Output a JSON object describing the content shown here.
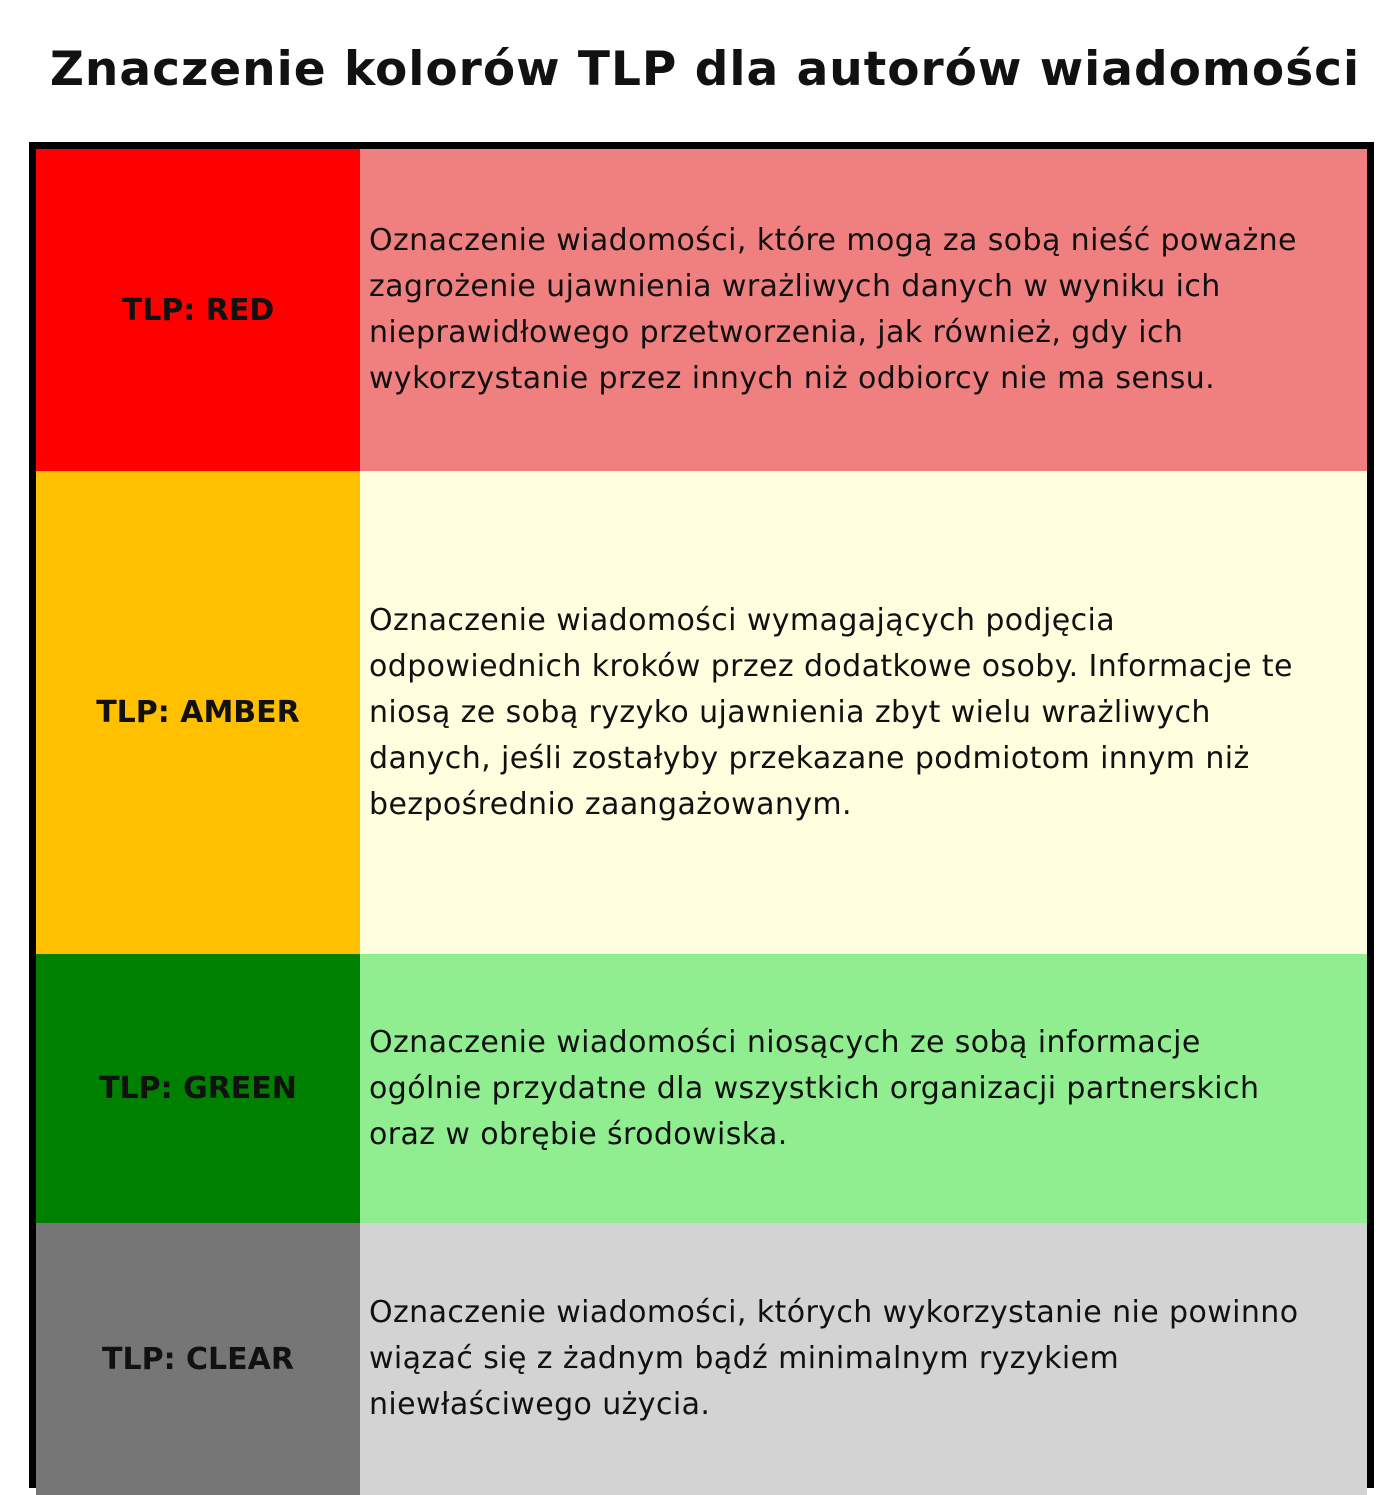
{
  "title": "Znaczenie kolorów TLP dla autorów wiadomości",
  "rows": [
    {
      "label": "TLP: RED",
      "label_color": "#ff0000",
      "desc_color": "#f08080",
      "lines": [
        "Oznaczenie wiadomości, które mogą za sobą nieść poważne",
        "zagrożenie ujawnienia wrażliwych danych w wyniku ich",
        "nieprawidłowego przetworzenia, jak również, gdy ich",
        "wykorzystanie przez innych niż odbiorcy nie ma sensu."
      ]
    },
    {
      "label": "TLP: AMBER",
      "label_color": "#ffc000",
      "desc_color": "#ffffe0",
      "lines": [
        "Oznaczenie wiadomości wymagających podjęcia",
        "odpowiednich kroków przez dodatkowe osoby. Informacje te",
        "niosą ze sobą ryzyko ujawnienia zbyt wielu wrażliwych",
        "danych, jeśli zostałyby przekazane podmiotom innym niż",
        "bezpośrednio zaangażowanym."
      ]
    },
    {
      "label": "TLP: GREEN",
      "label_color": "#008000",
      "desc_color": "#90ee90",
      "lines": [
        "Oznaczenie wiadomości niosących ze sobą informacje",
        "ogólnie przydatne dla wszystkich organizacji partnerskich",
        "oraz w obrębie środowiska."
      ]
    },
    {
      "label": "TLP: CLEAR",
      "label_color": "#767676",
      "desc_color": "#d3d3d3",
      "lines": [
        "Oznaczenie wiadomości, których wykorzystanie nie powinno",
        "wiązać się z żadnym bądź minimalnym ryzykiem",
        "niewłaściwego użycia."
      ]
    }
  ]
}
